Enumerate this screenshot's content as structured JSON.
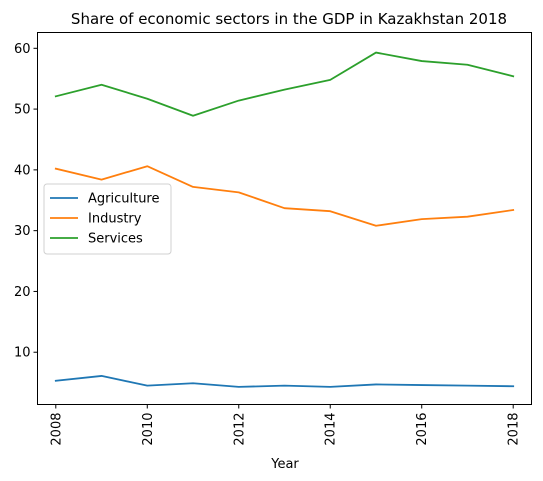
{
  "chart_data": {
    "type": "line",
    "title": "Share of economic sectors in the GDP in Kazakhstan 2018",
    "xlabel": "Year",
    "ylabel": "",
    "x": [
      2008,
      2009,
      2010,
      2011,
      2012,
      2013,
      2014,
      2015,
      2016,
      2017,
      2018
    ],
    "xlim": [
      2007.6,
      2018.4
    ],
    "ylim": [
      1.4,
      62.6
    ],
    "xticks": [
      2008,
      2010,
      2012,
      2014,
      2016,
      2018
    ],
    "yticks": [
      10,
      20,
      30,
      40,
      50,
      60
    ],
    "grid": false,
    "legend_position": "center-left",
    "series": [
      {
        "name": "Agriculture",
        "color": "#1f77b4",
        "values": [
          5.3,
          6.1,
          4.5,
          4.9,
          4.3,
          4.5,
          4.3,
          4.7,
          4.6,
          4.5,
          4.4
        ]
      },
      {
        "name": "Industry",
        "color": "#ff7f0e",
        "values": [
          40.2,
          38.4,
          40.6,
          37.2,
          36.3,
          33.7,
          33.2,
          30.8,
          31.9,
          32.3,
          33.4
        ]
      },
      {
        "name": "Services",
        "color": "#2ca02c",
        "values": [
          52.1,
          54.0,
          51.7,
          48.9,
          51.4,
          53.2,
          54.8,
          59.3,
          57.9,
          57.3,
          55.4
        ]
      }
    ]
  }
}
